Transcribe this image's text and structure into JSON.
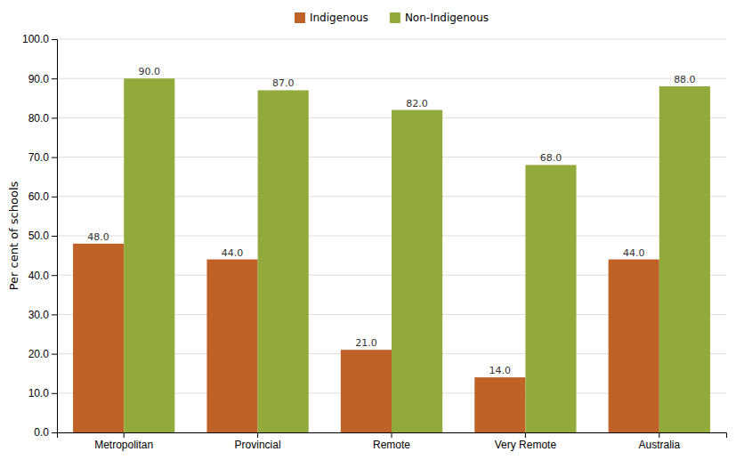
{
  "chart_data": {
    "type": "bar",
    "ylabel": "Per cent of schools",
    "categories": [
      "Metropolitan",
      "Provincial",
      "Remote",
      "Very Remote",
      "Australia"
    ],
    "series": [
      {
        "name": "Indigenous",
        "color": "#BE6228",
        "values": [
          48.0,
          44.0,
          21.0,
          14.0,
          44.0
        ],
        "value_labels": [
          "48.0",
          "44.0",
          "21.0",
          "14.0",
          "44.0"
        ]
      },
      {
        "name": "Non-Indigenous",
        "color": "#92AA3B",
        "values": [
          90.0,
          87.0,
          82.0,
          68.0,
          88.0
        ],
        "value_labels": [
          "90.0",
          "87.0",
          "82.0",
          "68.0",
          "88.0"
        ]
      }
    ],
    "ylim": [
      0,
      100
    ],
    "yticks": [
      {
        "value": 0,
        "label": "0.0"
      },
      {
        "value": 10,
        "label": "10.0"
      },
      {
        "value": 20,
        "label": "20.0"
      },
      {
        "value": 30,
        "label": "30.0"
      },
      {
        "value": 40,
        "label": "40.0"
      },
      {
        "value": 50,
        "label": "50.0"
      },
      {
        "value": 60,
        "label": "60.0"
      },
      {
        "value": 70,
        "label": "70.0"
      },
      {
        "value": 80,
        "label": "80.0"
      },
      {
        "value": 90,
        "label": "90.0"
      },
      {
        "value": 100,
        "label": "100.0"
      }
    ],
    "grid": true,
    "legend": "top",
    "data_labels": true
  }
}
